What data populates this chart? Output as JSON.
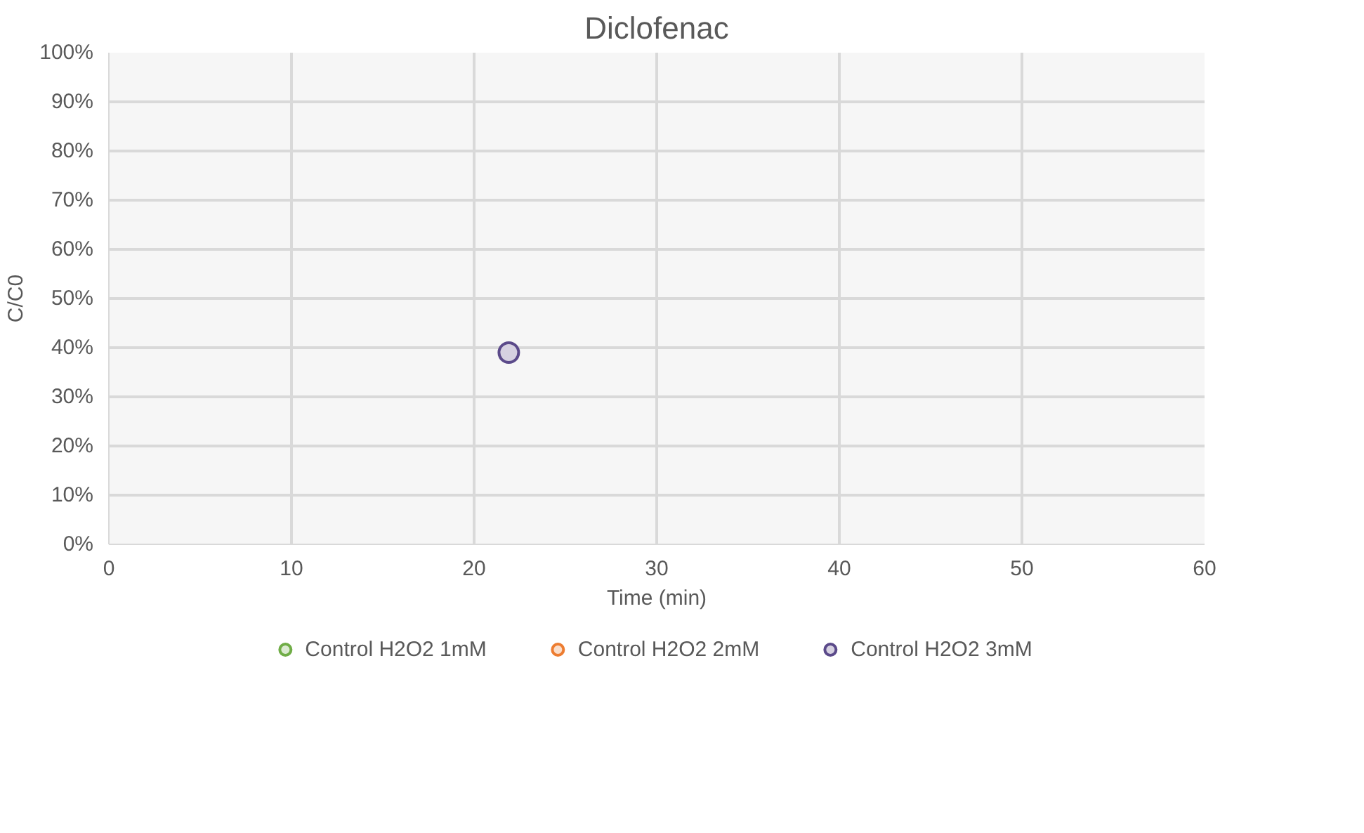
{
  "chart_data": {
    "type": "scatter",
    "title": "Diclofenac",
    "xlabel": "Time (min)",
    "ylabel": "C/C0",
    "x": [
      21.9
    ],
    "series": [
      {
        "name": "Control H2O2 1mM",
        "color": "#70ad47",
        "values": [
          null
        ]
      },
      {
        "name": "Control H2O2 2mM",
        "color": "#ed7d31",
        "values": [
          null
        ]
      },
      {
        "name": "Control H2O2 3mM",
        "color": "#5b4a8a",
        "values": [
          0.39
        ]
      }
    ],
    "xlim": [
      0,
      60
    ],
    "xticks": [
      0,
      10,
      20,
      30,
      40,
      50,
      60
    ],
    "ylim": [
      0,
      1
    ],
    "yticks": [
      {
        "value": 0,
        "label": "0%"
      },
      {
        "value": 0.1,
        "label": "10%"
      },
      {
        "value": 0.2,
        "label": "20%"
      },
      {
        "value": 0.3,
        "label": "30%"
      },
      {
        "value": 0.4,
        "label": "40%"
      },
      {
        "value": 0.5,
        "label": "50%"
      },
      {
        "value": 0.6,
        "label": "60%"
      },
      {
        "value": 0.7,
        "label": "70%"
      },
      {
        "value": 0.8,
        "label": "80%"
      },
      {
        "value": 0.9,
        "label": "90%"
      },
      {
        "value": 1,
        "label": "100%"
      }
    ],
    "grid": true,
    "legend": "bottom",
    "marker": "circle"
  }
}
